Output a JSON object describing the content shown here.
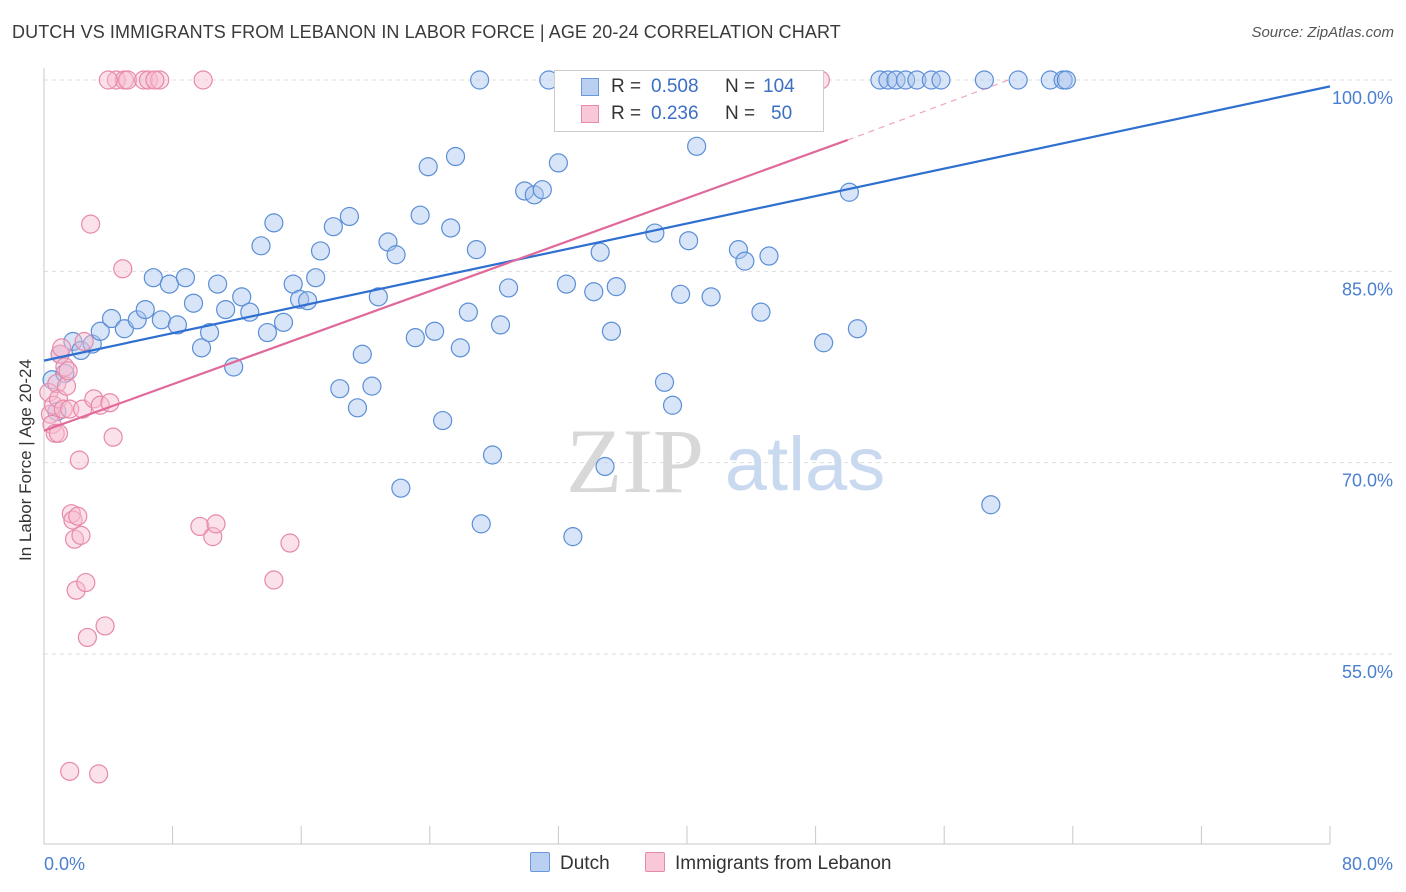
{
  "title": "DUTCH VS IMMIGRANTS FROM LEBANON IN LABOR FORCE | AGE 20-24 CORRELATION CHART",
  "source": "Source: ZipAtlas.com",
  "watermark": {
    "zip": "ZIP",
    "atlas": "atlas"
  },
  "legend": {
    "r_label": "R =",
    "n_label": "N =",
    "rows": [
      {
        "r": "0.508",
        "n": "104"
      },
      {
        "r": "0.236",
        "n": "50"
      }
    ]
  },
  "chart_data": {
    "type": "scatter",
    "title": "DUTCH VS IMMIGRANTS FROM LEBANON IN LABOR FORCE | AGE 20-24 CORRELATION CHART",
    "xlabel": "",
    "ylabel": "In Labor Force | Age 20-24",
    "xlim": [
      0,
      80
    ],
    "ylim": [
      40,
      102
    ],
    "x_tick_labels": [
      "0.0%",
      "80.0%"
    ],
    "y_ticks": [
      55,
      70,
      85,
      100
    ],
    "y_tick_labels": [
      "55.0%",
      "70.0%",
      "85.0%",
      "100.0%"
    ],
    "grid": true,
    "legend_position": "top-center",
    "series": [
      {
        "name": "Dutch",
        "color": "#a9c4ee",
        "edge": "#5b8fd6",
        "line_color": "#2f6fcf",
        "trend": {
          "x": [
            0,
            80
          ],
          "y": [
            78.0,
            99.5
          ]
        },
        "points": [
          [
            0.5,
            76.5
          ],
          [
            0.8,
            74
          ],
          [
            1.0,
            78.5
          ],
          [
            1.3,
            77
          ],
          [
            1.8,
            79.5
          ],
          [
            2.3,
            78.8
          ],
          [
            3.0,
            79.3
          ],
          [
            3.5,
            80.3
          ],
          [
            4.2,
            81.3
          ],
          [
            5.0,
            80.5
          ],
          [
            5.8,
            81.2
          ],
          [
            6.3,
            82
          ],
          [
            6.8,
            84.5
          ],
          [
            7.3,
            81.2
          ],
          [
            7.8,
            84
          ],
          [
            8.3,
            80.8
          ],
          [
            8.8,
            84.5
          ],
          [
            9.3,
            82.5
          ],
          [
            9.8,
            79
          ],
          [
            10.3,
            80.2
          ],
          [
            10.8,
            84
          ],
          [
            11.3,
            82
          ],
          [
            11.8,
            77.5
          ],
          [
            12.3,
            83
          ],
          [
            12.8,
            81.8
          ],
          [
            13.5,
            87
          ],
          [
            13.9,
            80.2
          ],
          [
            14.3,
            88.8
          ],
          [
            14.9,
            81
          ],
          [
            15.5,
            84
          ],
          [
            15.9,
            82.8
          ],
          [
            16.4,
            82.7
          ],
          [
            16.9,
            84.5
          ],
          [
            17.2,
            86.6
          ],
          [
            18.0,
            88.5
          ],
          [
            18.4,
            75.8
          ],
          [
            19.0,
            89.3
          ],
          [
            19.5,
            74.3
          ],
          [
            19.8,
            78.5
          ],
          [
            20.4,
            76
          ],
          [
            20.8,
            83
          ],
          [
            21.4,
            87.3
          ],
          [
            21.9,
            86.3
          ],
          [
            22.2,
            68
          ],
          [
            23.1,
            79.8
          ],
          [
            23.4,
            89.4
          ],
          [
            23.9,
            93.2
          ],
          [
            24.3,
            80.3
          ],
          [
            24.8,
            73.3
          ],
          [
            25.3,
            88.4
          ],
          [
            25.6,
            94
          ],
          [
            25.9,
            79
          ],
          [
            26.4,
            81.8
          ],
          [
            26.9,
            86.7
          ],
          [
            27.2,
            65.2
          ],
          [
            27.9,
            70.6
          ],
          [
            28.4,
            80.8
          ],
          [
            28.9,
            83.7
          ],
          [
            29.9,
            91.3
          ],
          [
            30.5,
            91
          ],
          [
            31.0,
            91.4
          ],
          [
            31.4,
            100
          ],
          [
            32.0,
            93.5
          ],
          [
            32.5,
            84
          ],
          [
            32.9,
            64.2
          ],
          [
            33.4,
            100
          ],
          [
            34.2,
            83.4
          ],
          [
            34.6,
            86.5
          ],
          [
            34.9,
            69.7
          ],
          [
            35.3,
            80.3
          ],
          [
            35.6,
            83.8
          ],
          [
            37.2,
            100
          ],
          [
            38.0,
            88
          ],
          [
            38.6,
            76.3
          ],
          [
            39.1,
            74.5
          ],
          [
            39.6,
            83.2
          ],
          [
            40.1,
            87.4
          ],
          [
            40.6,
            94.8
          ],
          [
            41.5,
            83
          ],
          [
            43.2,
            86.7
          ],
          [
            43.6,
            85.8
          ],
          [
            44.6,
            81.8
          ],
          [
            45.1,
            86.2
          ],
          [
            45.9,
            100
          ],
          [
            46.8,
            100
          ],
          [
            48.5,
            79.4
          ],
          [
            50.1,
            91.2
          ],
          [
            50.6,
            80.5
          ],
          [
            52.0,
            100
          ],
          [
            52.5,
            100
          ],
          [
            53.0,
            100
          ],
          [
            53.6,
            100
          ],
          [
            54.3,
            100
          ],
          [
            55.2,
            100
          ],
          [
            55.8,
            100
          ],
          [
            58.5,
            100
          ],
          [
            58.9,
            66.7
          ],
          [
            60.6,
            100
          ],
          [
            62.6,
            100
          ],
          [
            63.4,
            100
          ],
          [
            63.6,
            100
          ],
          [
            42.1,
            100
          ],
          [
            45.0,
            100
          ],
          [
            27.1,
            100
          ]
        ]
      },
      {
        "name": "Immigrants from Lebanon",
        "color": "#f6bdd0",
        "edge": "#e789a8",
        "line_color": "#e0699b",
        "trend": {
          "x": [
            0,
            50
          ],
          "y": [
            72.5,
            95.3
          ]
        },
        "trend_dashed": {
          "x": [
            50,
            60
          ],
          "y": [
            95.3,
            100
          ]
        },
        "points": [
          [
            0.3,
            75.5
          ],
          [
            0.4,
            73.8
          ],
          [
            0.5,
            73
          ],
          [
            0.6,
            74.5
          ],
          [
            0.7,
            72.3
          ],
          [
            0.8,
            76.2
          ],
          [
            0.9,
            75
          ],
          [
            1.0,
            78.5
          ],
          [
            1.1,
            79
          ],
          [
            1.2,
            74.2
          ],
          [
            1.3,
            77.5
          ],
          [
            1.4,
            76
          ],
          [
            1.5,
            77.2
          ],
          [
            1.6,
            74.2
          ],
          [
            1.7,
            66
          ],
          [
            1.8,
            65.5
          ],
          [
            1.9,
            64
          ],
          [
            2.0,
            60
          ],
          [
            2.1,
            65.8
          ],
          [
            2.2,
            70.2
          ],
          [
            2.3,
            64.3
          ],
          [
            2.4,
            74.2
          ],
          [
            2.5,
            79.5
          ],
          [
            2.6,
            60.6
          ],
          [
            2.7,
            56.3
          ],
          [
            2.9,
            88.7
          ],
          [
            3.8,
            57.2
          ],
          [
            3.1,
            75
          ],
          [
            3.5,
            74.5
          ],
          [
            4.1,
            74.7
          ],
          [
            4.3,
            72
          ],
          [
            4.5,
            100
          ],
          [
            4.9,
            85.2
          ],
          [
            5.0,
            100
          ],
          [
            5.2,
            100
          ],
          [
            6.2,
            100
          ],
          [
            6.5,
            100
          ],
          [
            7.2,
            100
          ],
          [
            9.7,
            65
          ],
          [
            9.9,
            100
          ],
          [
            10.5,
            64.2
          ],
          [
            10.7,
            65.2
          ],
          [
            14.3,
            60.8
          ],
          [
            15.3,
            63.7
          ],
          [
            1.6,
            45.8
          ],
          [
            3.4,
            45.6
          ],
          [
            0.9,
            72.3
          ],
          [
            4.0,
            100
          ],
          [
            6.9,
            100
          ],
          [
            48.3,
            100
          ]
        ]
      }
    ]
  },
  "bottom_legend": [
    "Dutch",
    "Immigrants from Lebanon"
  ]
}
